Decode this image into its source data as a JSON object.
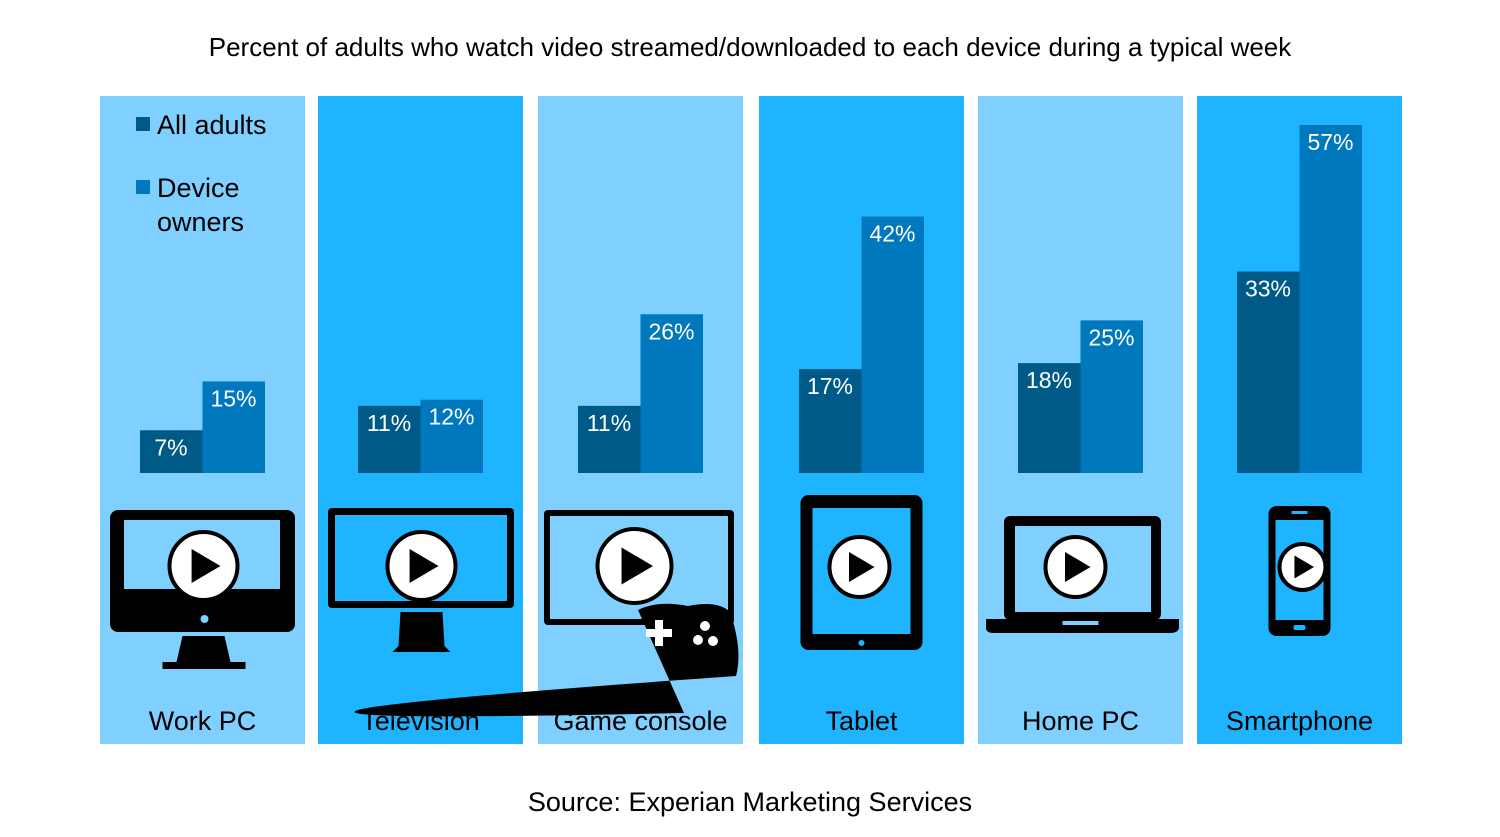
{
  "chart_data": {
    "type": "bar",
    "title": "Percent of adults who watch video streamed/downloaded to each device during a typical week",
    "source": "Source: Experian Marketing Services",
    "categories": [
      "Work PC",
      "Television",
      "Game console",
      "Tablet",
      "Home PC",
      "Smartphone"
    ],
    "icons": [
      "desktop-monitor-icon",
      "television-icon",
      "game-console-icon",
      "tablet-icon",
      "laptop-icon",
      "smartphone-icon"
    ],
    "series": [
      {
        "name": "All adults",
        "values": [
          7,
          11,
          11,
          17,
          18,
          33
        ],
        "labels": [
          "7%",
          "11%",
          "11%",
          "17%",
          "18%",
          "33%"
        ],
        "color": "#005A87"
      },
      {
        "name": "Device owners",
        "values": [
          15,
          12,
          26,
          42,
          25,
          57
        ],
        "labels": [
          "15%",
          "12%",
          "26%",
          "42%",
          "25%",
          "57%"
        ],
        "color": "#0078BE"
      }
    ],
    "legend": {
      "placement": "top-left",
      "entries": [
        "All adults",
        "Device owners"
      ]
    },
    "ylim": [
      0,
      60
    ],
    "grid": false,
    "panel_colors": [
      "#80D0FF",
      "#1EB4FF"
    ]
  }
}
